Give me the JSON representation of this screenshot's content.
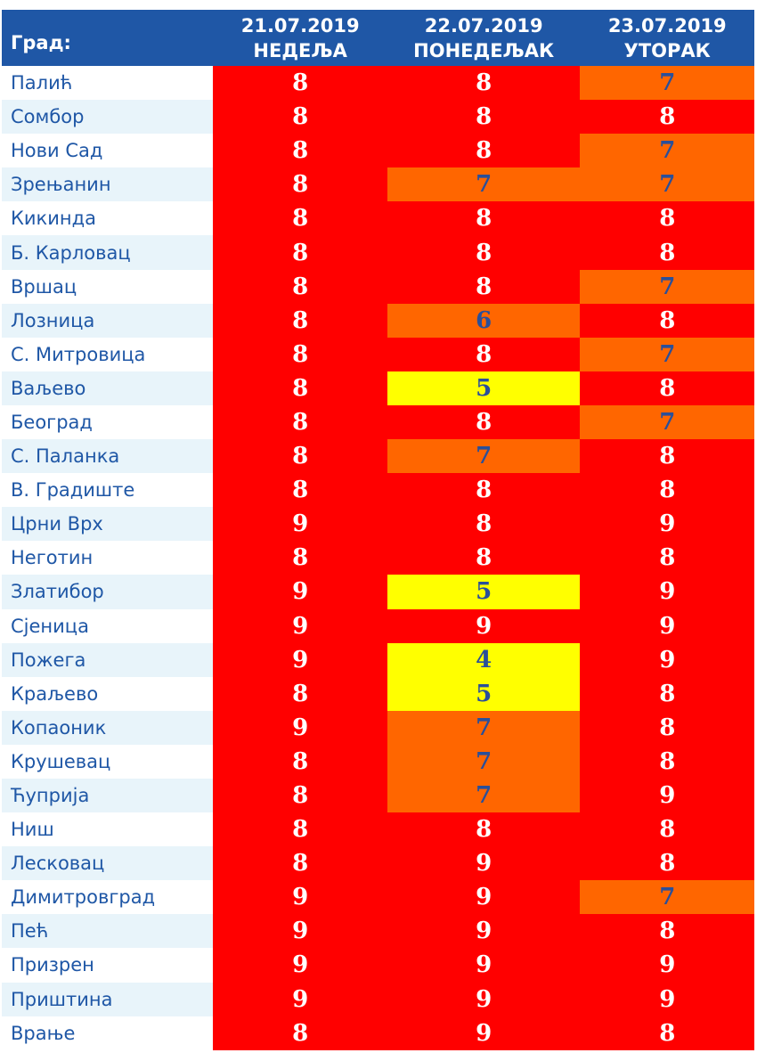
{
  "header": {
    "city_label": "Град:",
    "days": [
      {
        "date": "21.07.2019",
        "weekday": "НЕДЕЉА"
      },
      {
        "date": "22.07.2019",
        "weekday": "ПОНЕДЕЉАК"
      },
      {
        "date": "23.07.2019",
        "weekday": "УТОРАК"
      }
    ]
  },
  "colors": {
    "header_bg": "#1f57a6",
    "city_text": "#1f57a6",
    "alt_row_bg": "#e8f4fa",
    "level_high": "#ff0000",
    "level_medium_high": "#ff6600",
    "level_medium": "#ffff00"
  },
  "rows": [
    {
      "city": "Палић",
      "values": [
        "8",
        "8",
        "7"
      ]
    },
    {
      "city": "Сомбор",
      "values": [
        "8",
        "8",
        "8"
      ]
    },
    {
      "city": "Нови Сад",
      "values": [
        "8",
        "8",
        "7"
      ]
    },
    {
      "city": "Зрењанин",
      "values": [
        "8",
        "7",
        "7"
      ]
    },
    {
      "city": "Кикинда",
      "values": [
        "8",
        "8",
        "8"
      ]
    },
    {
      "city": "Б. Карловац",
      "values": [
        "8",
        "8",
        "8"
      ]
    },
    {
      "city": "Вршац",
      "values": [
        "8",
        "8",
        "7"
      ]
    },
    {
      "city": "Лозница",
      "values": [
        "8",
        "6",
        "8"
      ]
    },
    {
      "city": "С. Митровица",
      "values": [
        "8",
        "8",
        "7"
      ]
    },
    {
      "city": "Ваљево",
      "values": [
        "8",
        "5",
        "8"
      ]
    },
    {
      "city": "Београд",
      "values": [
        "8",
        "8",
        "7"
      ]
    },
    {
      "city": "С. Паланка",
      "values": [
        "8",
        "7",
        "8"
      ]
    },
    {
      "city": "В. Градиште",
      "values": [
        "8",
        "8",
        "8"
      ]
    },
    {
      "city": "Црни Врх",
      "values": [
        "9",
        "8",
        "9"
      ]
    },
    {
      "city": "Неготин",
      "values": [
        "8",
        "8",
        "8"
      ]
    },
    {
      "city": "Златибор",
      "values": [
        "9",
        "5",
        "9"
      ]
    },
    {
      "city": "Сјеница",
      "values": [
        "9",
        "9",
        "9"
      ]
    },
    {
      "city": "Пожега",
      "values": [
        "9",
        "4",
        "9"
      ]
    },
    {
      "city": "Краљево",
      "values": [
        "8",
        "5",
        "8"
      ]
    },
    {
      "city": "Копаоник",
      "values": [
        "9",
        "7",
        "8"
      ]
    },
    {
      "city": "Крушевац",
      "values": [
        "8",
        "7",
        "8"
      ]
    },
    {
      "city": "Ћуприја",
      "values": [
        "8",
        "7",
        "9"
      ]
    },
    {
      "city": "Ниш",
      "values": [
        "8",
        "8",
        "8"
      ]
    },
    {
      "city": "Лесковац",
      "values": [
        "8",
        "9",
        "8"
      ]
    },
    {
      "city": "Димитровград",
      "values": [
        "9",
        "9",
        "7"
      ]
    },
    {
      "city": "Пећ",
      "values": [
        "9",
        "9",
        "8"
      ]
    },
    {
      "city": "Призрен",
      "values": [
        "9",
        "9",
        "9"
      ]
    },
    {
      "city": "Приштина",
      "values": [
        "9",
        "9",
        "9"
      ]
    },
    {
      "city": "Врање",
      "values": [
        "8",
        "9",
        "8"
      ]
    }
  ]
}
